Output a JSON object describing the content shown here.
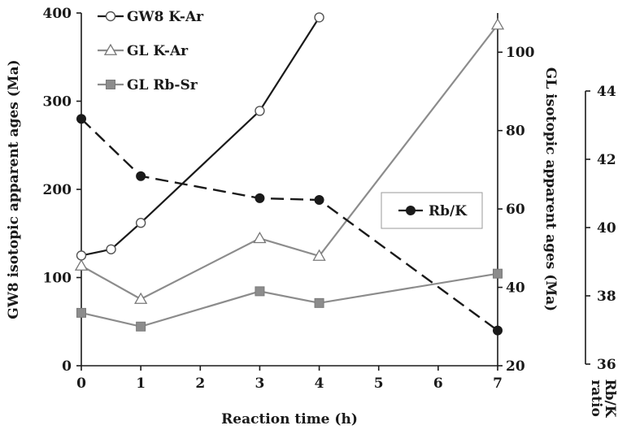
{
  "chart_data": {
    "type": "line",
    "xlabel": "Reaction time (h)",
    "x_ticks": [
      0,
      1,
      2,
      3,
      4,
      5,
      6,
      7
    ],
    "xlim": [
      0,
      7
    ],
    "left_axis": {
      "label": "GW8 isotopic apparent ages (Ma)",
      "ylim": [
        0,
        400
      ],
      "ticks": [
        0,
        100,
        200,
        300,
        400
      ]
    },
    "right_axis": {
      "label": "GL isotopic apparent ages (Ma)",
      "ylim": [
        20,
        110
      ],
      "ticks": [
        20,
        40,
        60,
        80,
        100
      ]
    },
    "third_axis": {
      "label": "Rb/K ratio",
      "ylim": [
        36,
        44
      ],
      "ticks": [
        36,
        38,
        40,
        42,
        44
      ],
      "tick_labels": [
        "36",
        "38",
        "40",
        "42",
        "44"
      ]
    },
    "series": [
      {
        "name": "GW8 K-Ar",
        "axis": "left",
        "marker": "circle-open",
        "line_color": "#1a1a1a",
        "line_style": "solid",
        "x": [
          0,
          0.5,
          1,
          3,
          4
        ],
        "y": [
          125,
          132,
          162,
          289,
          395
        ]
      },
      {
        "name": "GL K-Ar",
        "axis": "right",
        "marker": "triangle-open",
        "line_color": "#8c8c8c",
        "line_style": "solid",
        "x": [
          0,
          1,
          3,
          4,
          7
        ],
        "y": [
          45.5,
          37,
          52.5,
          48,
          107
        ]
      },
      {
        "name": "GL Rb-Sr",
        "axis": "right",
        "marker": "square-filled",
        "line_color": "#8c8c8c",
        "line_style": "solid",
        "x": [
          0,
          1,
          3,
          4,
          7
        ],
        "y": [
          33.5,
          30,
          39,
          36,
          43.5
        ]
      },
      {
        "name": "Rb/K",
        "axis": "left",
        "marker": "circle-filled",
        "line_color": "#1a1a1a",
        "line_style": "dashed",
        "x": [
          0,
          1,
          3,
          4,
          7
        ],
        "y": [
          280,
          215,
          190,
          188,
          40
        ]
      }
    ],
    "legend": {
      "placement": "top-left",
      "entries": [
        "GW8 K-Ar",
        "GL K-Ar",
        "GL Rb-Sr"
      ]
    },
    "legend_box": {
      "placement": "center-right",
      "entries": [
        "Rb/K"
      ]
    },
    "grid": false
  }
}
